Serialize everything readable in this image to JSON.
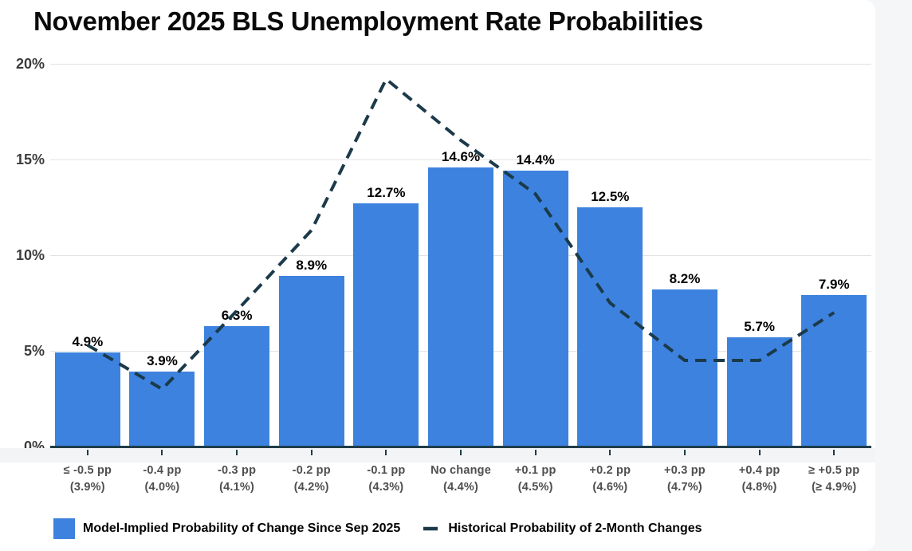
{
  "page": {
    "background": "#f5f6f8",
    "card_background": "#ffffff"
  },
  "title": "November 2025 BLS Unemployment Rate Probabilities",
  "colors": {
    "bar_blue": "#3d82de",
    "line_dark": "#1b3a4a",
    "axis": "#1f3d49",
    "gridline": "#e3e3e3",
    "y_label": "#3c3c3c",
    "x_label": "#4f4f4f",
    "bar_label": "#000000"
  },
  "chart_data": {
    "type": "bar",
    "title": "November 2025 BLS Unemployment Rate Probabilities",
    "categories": [
      "≤ -0.5 pp",
      "-0.4 pp",
      "-0.3 pp",
      "-0.2 pp",
      "-0.1 pp",
      "No change",
      "+0.1 pp",
      "+0.2 pp",
      "+0.3 pp",
      "+0.4 pp",
      "≥ +0.5 pp"
    ],
    "category_sublabels": [
      "(3.9%)",
      "(4.0%)",
      "(4.1%)",
      "(4.2%)",
      "(4.3%)",
      "(4.4%)",
      "(4.5%)",
      "(4.6%)",
      "(4.7%)",
      "(4.8%)",
      "(≥ 4.9%)"
    ],
    "series": [
      {
        "name": "Model-Implied Probability of Change Since Sep 2025",
        "type": "bar",
        "color": "#3d82de",
        "values": [
          4.9,
          3.9,
          6.3,
          8.9,
          12.7,
          14.6,
          14.4,
          12.5,
          8.2,
          5.7,
          7.9
        ],
        "data_labels": [
          "4.9%",
          "3.9%",
          "6.3%",
          "8.9%",
          "12.7%",
          "14.6%",
          "14.4%",
          "12.5%",
          "8.2%",
          "5.7%",
          "7.9%"
        ]
      },
      {
        "name": "Historical Probability of 2-Month Changes",
        "type": "dashed-line",
        "color": "#1b3a4a",
        "values": [
          5.3,
          3.0,
          7.1,
          11.3,
          19.2,
          16.0,
          13.2,
          7.5,
          4.5,
          4.5,
          7.0
        ]
      }
    ],
    "xlabel": "",
    "ylabel": "",
    "y_ticks": [
      "0%",
      "5%",
      "10%",
      "15%",
      "20%"
    ],
    "ylim": [
      0,
      20
    ],
    "grid": true,
    "legend_position": "bottom"
  }
}
